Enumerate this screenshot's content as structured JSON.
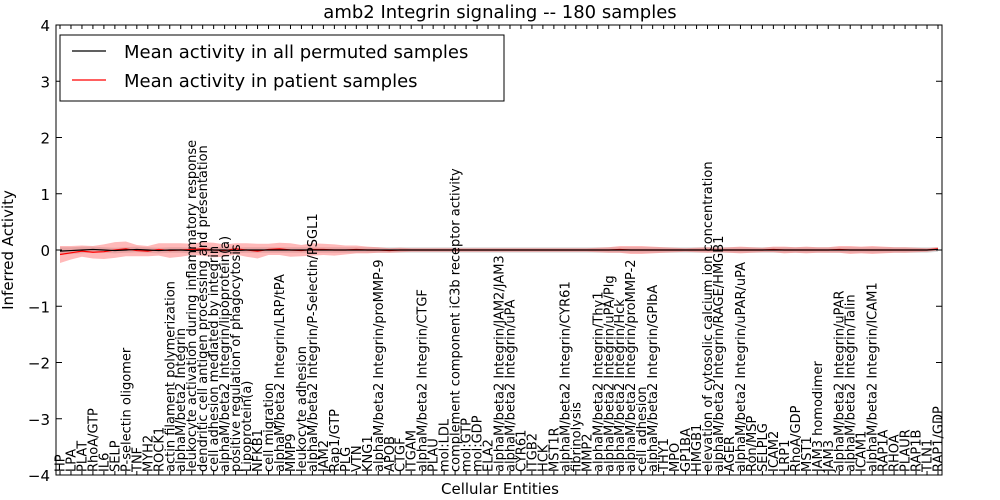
{
  "chart_data": {
    "type": "line",
    "title": "amb2 Integrin signaling -- 180 samples",
    "xlabel": "Cellular Entities",
    "ylabel": "Inferred Activity",
    "ylim": [
      -4,
      4
    ],
    "yticks": [
      4,
      3,
      2,
      1,
      0,
      -1,
      -2,
      -3,
      -4
    ],
    "ytick_labels": [
      "4",
      "3",
      "2",
      "1",
      "0",
      "−1",
      "−2",
      "−3",
      "−4"
    ],
    "legend_position": "top-left",
    "grid": false,
    "categories": [
      "HP",
      "LPA",
      "PLAT",
      "RhoA/GTP",
      "IL6",
      "SELP",
      "P-selectin oligomer",
      "TNF",
      "MYH2",
      "ROCK1",
      "actin filament polymerization",
      "alphaM/beta2 Integrin",
      "leukocyte activation during inflammatory response",
      "dendritic cell antigen processing and presentation",
      "cell adhesion mediated by integrin",
      "alphaM/beta2 Integrin/lipoprotein(a)",
      "positive regulation of phagocytosis",
      "Lipoprotein(a)",
      "NFKB1",
      "cell migration",
      "alphaM/beta2 Integrin/LRP/tPA",
      "MMP9",
      "leukocyte adhesion",
      "alphaM/beta2 Integrin/P-Selectin/PSGL1",
      "JAM2",
      "Rap1/GTP",
      "PLG",
      "VTN",
      "KNG1",
      "alphaM/beta2 Integrin/proMMP-9",
      "APOB",
      "CTGF",
      "ITGAM",
      "alphaM/beta2 Integrin/CTGF",
      "PLAU",
      "mol:LDL",
      "complement component iC3b receptor activity",
      "mol:GTP",
      "mol:GDP",
      "ELA2",
      "alphaM/beta2 Integrin/JAM2/JAM3",
      "alphaM/beta2 Integrin/uPA",
      "CYR61",
      "ITGB2",
      "HCK",
      "MST1R",
      "alphaM/beta2 Integrin/CYR61",
      "fibrinolysis",
      "MMP2",
      "alphaM/beta2 Integrin/Thy1",
      "alphaM/beta2 Integrin/uPA/Plg",
      "alphaM/beta2 Integrin/Hck",
      "alphaM/beta2 Integrin/proMMP-2",
      "cell adhesion",
      "alphaM/beta2 Integrin/GPIbA",
      "THY1",
      "MPO",
      "GP1BA",
      "HMGB1",
      "elevation of cytosolic calcium ion concentration",
      "alphaM/beta2 Integrin/RAGE/HMGB1",
      "AGER",
      "alphaM/beta2 Integrin/uPAR/uPA",
      "Ron/MSP",
      "SELPLG",
      "ICAM2",
      "LRP1",
      "RhoA/GDP",
      "MST1",
      "JAM3 homodimer",
      "JAM3",
      "alphaM/beta2 Integrin/uPAR",
      "alphaM/beta2 Integrin/Talin",
      "ICAM1",
      "alphaM/beta2 Integrin/ICAM1",
      "RAP1A",
      "RHOA",
      "PLAUR",
      "RAP1B",
      "TLN1",
      "RAP1/GDP"
    ],
    "series": [
      {
        "name": "Mean activity in all permuted samples",
        "color": "#000000",
        "values": [
          -0.02,
          -0.01,
          0.0,
          0.01,
          0.0,
          -0.01,
          0.0,
          0.01,
          0.0,
          -0.01,
          0.0,
          0.0,
          -0.01,
          0.0,
          0.0,
          0.0,
          -0.01,
          0.0,
          0.0,
          0.0,
          0.0,
          0.0,
          0.0,
          0.0,
          0.0,
          0.0,
          0.0,
          0.0,
          0.0,
          0.0,
          0.0,
          0.0,
          0.0,
          0.0,
          0.0,
          0.0,
          0.0,
          0.0,
          0.0,
          0.0,
          0.0,
          0.0,
          0.0,
          0.0,
          0.0,
          0.0,
          0.0,
          0.0,
          0.0,
          0.0,
          0.0,
          0.0,
          0.0,
          0.0,
          0.0,
          0.0,
          0.0,
          0.0,
          0.0,
          0.0,
          0.0,
          0.0,
          0.0,
          0.0,
          0.0,
          0.0,
          0.0,
          0.0,
          0.0,
          0.0,
          0.0,
          0.0,
          0.0,
          0.0,
          0.0,
          0.0,
          0.0,
          0.0,
          0.0,
          0.0,
          0.01
        ],
        "band": [
          0.07,
          0.06,
          0.06,
          0.05,
          0.05,
          0.05,
          0.05,
          0.05,
          0.05,
          0.05,
          0.05,
          0.05,
          0.05,
          0.05,
          0.05,
          0.05,
          0.05,
          0.05,
          0.05,
          0.05,
          0.05,
          0.05,
          0.05,
          0.05,
          0.05,
          0.05,
          0.05,
          0.05,
          0.05,
          0.05,
          0.05,
          0.05,
          0.05,
          0.05,
          0.05,
          0.05,
          0.05,
          0.05,
          0.05,
          0.05,
          0.05,
          0.05,
          0.05,
          0.05,
          0.05,
          0.05,
          0.05,
          0.05,
          0.05,
          0.05,
          0.05,
          0.05,
          0.05,
          0.05,
          0.05,
          0.05,
          0.05,
          0.05,
          0.05,
          0.05,
          0.05,
          0.05,
          0.05,
          0.05,
          0.05,
          0.05,
          0.05,
          0.05,
          0.05,
          0.05,
          0.05,
          0.05,
          0.05,
          0.05,
          0.05,
          0.05,
          0.05,
          0.05,
          0.05,
          0.05,
          0.04
        ]
      },
      {
        "name": "Mean activity in patient samples",
        "color": "#ff0000",
        "values": [
          -0.08,
          -0.05,
          -0.02,
          -0.04,
          -0.03,
          0.0,
          0.02,
          -0.01,
          -0.02,
          0.01,
          -0.01,
          0.0,
          0.01,
          0.02,
          0.0,
          -0.01,
          0.02,
          0.0,
          -0.02,
          0.01,
          0.02,
          0.0,
          -0.01,
          0.01,
          0.01,
          0.0,
          0.0,
          0.01,
          0.0,
          0.0,
          -0.01,
          0.0,
          0.0,
          0.0,
          0.0,
          0.0,
          0.0,
          0.0,
          0.0,
          0.0,
          0.0,
          0.0,
          0.0,
          0.0,
          0.0,
          0.0,
          0.0,
          0.0,
          0.0,
          0.0,
          0.0,
          0.01,
          0.0,
          0.0,
          0.0,
          0.0,
          0.0,
          0.0,
          0.0,
          0.0,
          0.0,
          0.0,
          0.0,
          0.0,
          0.0,
          0.01,
          0.0,
          0.0,
          0.0,
          0.0,
          0.0,
          0.01,
          0.0,
          0.0,
          0.0,
          0.0,
          0.0,
          0.0,
          0.0,
          0.0,
          0.02
        ],
        "band": [
          0.15,
          0.12,
          0.1,
          0.11,
          0.13,
          0.14,
          0.13,
          0.1,
          0.09,
          0.11,
          0.13,
          0.12,
          0.1,
          0.12,
          0.13,
          0.11,
          0.1,
          0.12,
          0.13,
          0.1,
          0.11,
          0.12,
          0.1,
          0.11,
          0.1,
          0.1,
          0.08,
          0.07,
          0.06,
          0.05,
          0.04,
          0.04,
          0.03,
          0.03,
          0.03,
          0.03,
          0.03,
          0.03,
          0.03,
          0.03,
          0.03,
          0.03,
          0.03,
          0.03,
          0.03,
          0.03,
          0.03,
          0.03,
          0.03,
          0.04,
          0.05,
          0.06,
          0.07,
          0.07,
          0.06,
          0.05,
          0.04,
          0.03,
          0.04,
          0.05,
          0.04,
          0.05,
          0.06,
          0.05,
          0.04,
          0.05,
          0.06,
          0.05,
          0.06,
          0.05,
          0.05,
          0.06,
          0.07,
          0.06,
          0.07,
          0.06,
          0.05,
          0.05,
          0.04,
          0.03,
          0.03
        ]
      }
    ]
  }
}
